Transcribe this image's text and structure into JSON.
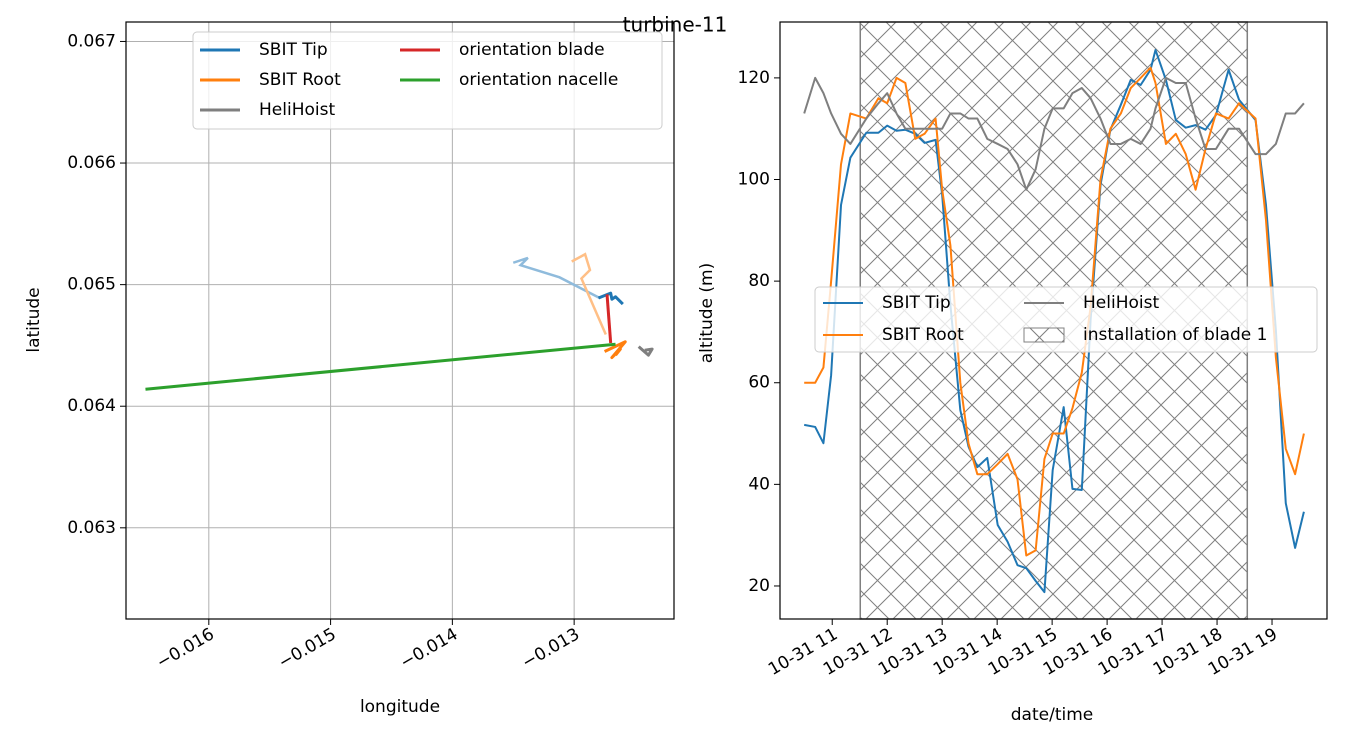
{
  "suptitle": "turbine-11",
  "chart_data": [
    {
      "type": "line",
      "xlabel": "longitude",
      "ylabel": "latitude",
      "xlim": [
        -0.01668,
        -0.01218
      ],
      "ylim": [
        0.06225,
        0.06716
      ],
      "xticks": [
        {
          "value": -0.016,
          "label": "−0.016"
        },
        {
          "value": -0.015,
          "label": "−0.015"
        },
        {
          "value": -0.014,
          "label": "−0.014"
        },
        {
          "value": -0.013,
          "label": "−0.013"
        }
      ],
      "yticks": [
        0.063,
        0.064,
        0.065,
        0.066,
        0.067
      ],
      "grid": true,
      "legend": "upper center",
      "legend_columns": 2,
      "series": [
        {
          "name": "SBIT Tip",
          "color": "#1f77b4",
          "x": [
            -0.0128,
            -0.0127,
            -0.01269,
            -0.01266,
            -0.0126
          ],
          "values": [
            0.06489,
            0.06493,
            0.06488,
            0.0649,
            0.06484
          ],
          "trail": {
            "color": "#8fbbdc",
            "x": [
              -0.0135,
              -0.01338,
              -0.01344,
              -0.01312,
              -0.01279
            ],
            "values": [
              0.06518,
              0.06522,
              0.06516,
              0.06506,
              0.06489
            ]
          }
        },
        {
          "name": "SBIT Root",
          "color": "#ff7f0e",
          "x": [
            -0.01275,
            -0.01258,
            -0.01269,
            -0.01262,
            -0.01266
          ],
          "values": [
            0.06445,
            0.06453,
            0.0644,
            0.06447,
            0.06442
          ],
          "trail": {
            "color": "#ffbf86",
            "x": [
              -0.01302,
              -0.01291,
              -0.01287,
              -0.01294,
              -0.01274
            ],
            "values": [
              0.06519,
              0.06525,
              0.06512,
              0.06505,
              0.06459
            ]
          }
        },
        {
          "name": "HeliHoist",
          "color": "#7f7f7f",
          "x": [
            -0.01247,
            -0.01239,
            -0.01236,
            -0.01242
          ],
          "values": [
            0.06449,
            0.06442,
            0.06447,
            0.06446
          ]
        },
        {
          "name": "orientation blade",
          "color": "#d62728",
          "x": [
            -0.01273,
            -0.0127
          ],
          "values": [
            0.06492,
            0.06452
          ]
        },
        {
          "name": "orientation nacelle",
          "color": "#2ca02c",
          "x": [
            -0.01652,
            -0.01266
          ],
          "values": [
            0.06414,
            0.06451
          ]
        }
      ]
    },
    {
      "type": "line",
      "xlabel": "date/time",
      "ylabel": "altitude (m)",
      "xlim": [
        10.05,
        20.0
      ],
      "ylim": [
        13.5,
        131.0
      ],
      "xticks": [
        {
          "value": 11,
          "label": "10-31 11"
        },
        {
          "value": 12,
          "label": "10-31 12"
        },
        {
          "value": 13,
          "label": "10-31 13"
        },
        {
          "value": 14,
          "label": "10-31 14"
        },
        {
          "value": 15,
          "label": "10-31 15"
        },
        {
          "value": 16,
          "label": "10-31 16"
        },
        {
          "value": 17,
          "label": "10-31 17"
        },
        {
          "value": 18,
          "label": "10-31 18"
        },
        {
          "value": 19,
          "label": "10-31 19"
        }
      ],
      "yticks": [
        20,
        40,
        60,
        80,
        100,
        120
      ],
      "grid": false,
      "legend": "center",
      "legend_columns": 2,
      "x": [
        10.49,
        10.69,
        10.84,
        10.98,
        11.16,
        11.33,
        11.62,
        11.84,
        12.0,
        12.17,
        12.33,
        12.51,
        12.68,
        12.88,
        13.0,
        13.15,
        13.33,
        13.48,
        13.64,
        13.82,
        14.01,
        14.19,
        14.37,
        14.53,
        14.7,
        14.86,
        15.01,
        15.21,
        15.37,
        15.54,
        15.7,
        15.88,
        16.06,
        16.25,
        16.43,
        16.61,
        16.79,
        16.88,
        17.07,
        17.25,
        17.43,
        17.61,
        17.79,
        17.98,
        18.21,
        18.4,
        18.7,
        18.89,
        19.07,
        19.25,
        19.42,
        19.58
      ],
      "series": [
        {
          "name": "SBIT Tip",
          "color": "#1f77b4",
          "values": [
            51.7,
            51.3,
            48.1,
            61.5,
            95.0,
            104.3,
            109.2,
            109.2,
            110.6,
            109.6,
            109.8,
            109.0,
            107.2,
            107.8,
            97.0,
            75.3,
            54.6,
            47.4,
            43.4,
            45.2,
            32.0,
            28.7,
            24.1,
            23.5,
            21.0,
            18.8,
            42.8,
            55.2,
            39.1,
            38.9,
            72.4,
            98.9,
            109.8,
            114.7,
            119.6,
            118.6,
            121.6,
            125.5,
            119.6,
            111.7,
            110.2,
            110.7,
            109.8,
            112.7,
            121.6,
            115.7,
            111.7,
            95.0,
            70.4,
            36.3,
            27.5,
            34.6
          ]
        },
        {
          "name": "SBIT Root",
          "color": "#ff7f0e",
          "values": [
            60,
            60,
            63,
            80,
            103,
            113,
            112,
            116,
            115,
            120,
            119,
            108,
            109,
            112,
            98,
            87,
            60,
            48,
            42,
            42,
            44,
            46,
            41,
            26,
            27,
            45,
            50,
            50,
            55,
            62,
            75,
            100,
            110,
            113,
            118,
            120,
            122,
            119,
            107,
            109,
            105,
            98,
            106,
            113,
            112,
            115,
            112,
            92,
            65,
            47,
            42,
            50
          ]
        },
        {
          "name": "HeliHoist",
          "color": "#7f7f7f",
          "values": [
            113,
            120,
            117,
            113,
            109,
            107,
            112,
            115,
            117,
            113,
            110,
            110,
            110,
            110,
            110,
            113,
            113,
            112,
            112,
            108,
            107,
            106,
            103,
            98,
            102,
            110,
            114,
            114,
            117,
            118,
            116,
            112,
            107,
            107,
            108,
            107,
            110,
            114,
            120,
            119,
            119,
            112,
            106,
            106,
            110,
            110,
            105,
            105,
            107,
            113,
            113,
            115
          ]
        }
      ],
      "span": {
        "start": 11.51,
        "end": 18.55,
        "label": "installation of blade 1",
        "color": "#808080"
      }
    }
  ]
}
